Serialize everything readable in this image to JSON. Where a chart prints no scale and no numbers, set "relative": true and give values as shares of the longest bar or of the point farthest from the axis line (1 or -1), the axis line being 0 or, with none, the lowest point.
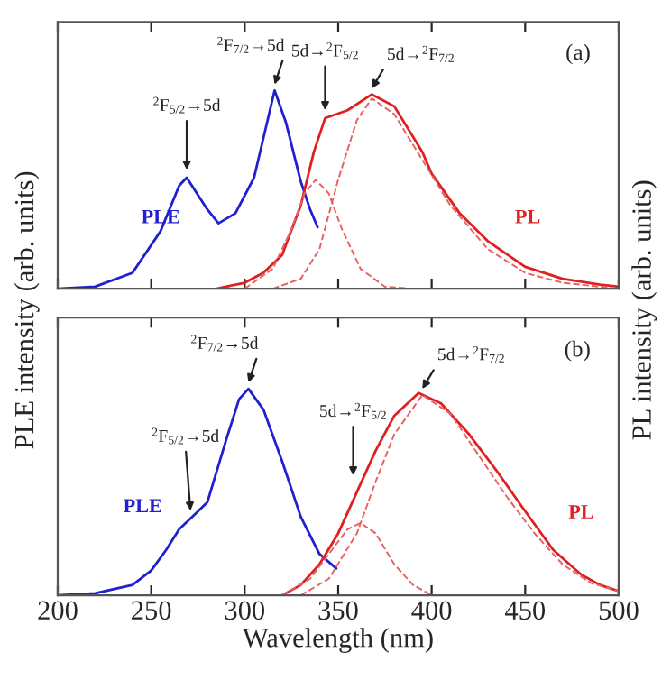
{
  "chart_data": [
    {
      "type": "line",
      "relative": true,
      "xlim": [
        200,
        500
      ],
      "xticks": [
        200,
        250,
        300,
        350,
        400,
        450,
        500
      ],
      "tick_labels": false,
      "ylabel": "PLE intensity (arb. units)",
      "y2label": "PL intensity (arb. units)",
      "line_style": "solid",
      "marker": "none",
      "series": [
        {
          "name": "PLE",
          "color": "#2020d0",
          "x": [
            200,
            220,
            240,
            255,
            265,
            269,
            280,
            286,
            295,
            305,
            312,
            316,
            322,
            330,
            335,
            339
          ],
          "values": [
            0,
            0.01,
            0.08,
            0.29,
            0.52,
            0.56,
            0.4,
            0.33,
            0.38,
            0.56,
            0.84,
            1.0,
            0.84,
            0.54,
            0.4,
            0.31
          ]
        },
        {
          "name": "PL",
          "color": "#e02020",
          "x": [
            285,
            300,
            310,
            320,
            330,
            337,
            343,
            355,
            368,
            380,
            395,
            400,
            415,
            430,
            450,
            470,
            490,
            500
          ],
          "values": [
            0,
            0.03,
            0.08,
            0.17,
            0.42,
            0.69,
            0.86,
            0.9,
            0.98,
            0.92,
            0.69,
            0.58,
            0.38,
            0.24,
            0.11,
            0.05,
            0.02,
            0.01
          ]
        },
        {
          "color": "#e86060",
          "line_style": "dashed",
          "x": [
            300,
            315,
            325,
            332,
            338,
            345,
            352,
            362,
            375,
            390
          ],
          "values": [
            0,
            0.1,
            0.3,
            0.48,
            0.55,
            0.48,
            0.3,
            0.1,
            0.01,
            0
          ]
        },
        {
          "color": "#e86060",
          "line_style": "dashed",
          "x": [
            315,
            330,
            340,
            350,
            360,
            368,
            380,
            395,
            410,
            430,
            450,
            470,
            500
          ],
          "values": [
            0,
            0.05,
            0.2,
            0.55,
            0.85,
            0.96,
            0.88,
            0.65,
            0.42,
            0.2,
            0.08,
            0.03,
            0
          ]
        }
      ],
      "annotations": [
        "(a)",
        {
          "text": "$^{2}$F$_{5/2}$→5d",
          "x": 269,
          "y": 0.6
        },
        {
          "text": "$^{2}$F$_{7/2}$→5d",
          "x": 316,
          "y": 1.03
        },
        {
          "text": "5d→$^{2}$F$_{5/2}$",
          "x": 343,
          "y": 0.9
        },
        {
          "text": "5d→$^{2}$F$_{7/2}$",
          "x": 368,
          "y": 1.01
        }
      ]
    },
    {
      "type": "line",
      "relative": true,
      "xlim": [
        200,
        500
      ],
      "xticks": [
        200,
        250,
        300,
        350,
        400,
        450,
        500
      ],
      "tick_labels": "x",
      "xlabel": "Wavelength (nm)",
      "line_style": "solid",
      "marker": "none",
      "series": [
        {
          "name": "PLE",
          "color": "#2020d0",
          "x": [
            200,
            220,
            240,
            250,
            258,
            265,
            272,
            280,
            290,
            297,
            302,
            310,
            320,
            330,
            340,
            349
          ],
          "values": [
            0,
            0.01,
            0.05,
            0.12,
            0.22,
            0.32,
            0.38,
            0.45,
            0.75,
            0.95,
            1.0,
            0.9,
            0.65,
            0.38,
            0.2,
            0.13
          ]
        },
        {
          "name": "PL",
          "color": "#e02020",
          "x": [
            320,
            330,
            340,
            350,
            360,
            370,
            380,
            393,
            405,
            420,
            435,
            449,
            465,
            480,
            490,
            500
          ],
          "values": [
            0,
            0.05,
            0.15,
            0.3,
            0.5,
            0.7,
            0.87,
            0.98,
            0.93,
            0.78,
            0.6,
            0.42,
            0.22,
            0.1,
            0.05,
            0.02
          ]
        },
        {
          "color": "#e86060",
          "line_style": "dashed",
          "x": [
            320,
            335,
            345,
            355,
            362,
            370,
            380,
            390,
            400
          ],
          "values": [
            0,
            0.08,
            0.2,
            0.32,
            0.35,
            0.3,
            0.15,
            0.05,
            0
          ]
        },
        {
          "color": "#e86060",
          "line_style": "dashed",
          "x": [
            330,
            345,
            360,
            370,
            380,
            395,
            410,
            425,
            440,
            455,
            470,
            485,
            500
          ],
          "values": [
            0,
            0.08,
            0.3,
            0.55,
            0.78,
            0.97,
            0.88,
            0.68,
            0.48,
            0.3,
            0.15,
            0.06,
            0.02
          ]
        }
      ],
      "annotations": [
        "(b)",
        {
          "text": "$^{2}$F$_{5/2}$→5d",
          "x": 271,
          "y": 0.41
        },
        {
          "text": "$^{2}$F$_{7/2}$→5d",
          "x": 302,
          "y": 1.03
        },
        {
          "text": "5d→$^{2}$F$_{5/2}$",
          "x": 358,
          "y": 0.58
        },
        {
          "text": "5d→$^{2}$F$_{7/2}$",
          "x": 395,
          "y": 1.0
        }
      ]
    }
  ]
}
